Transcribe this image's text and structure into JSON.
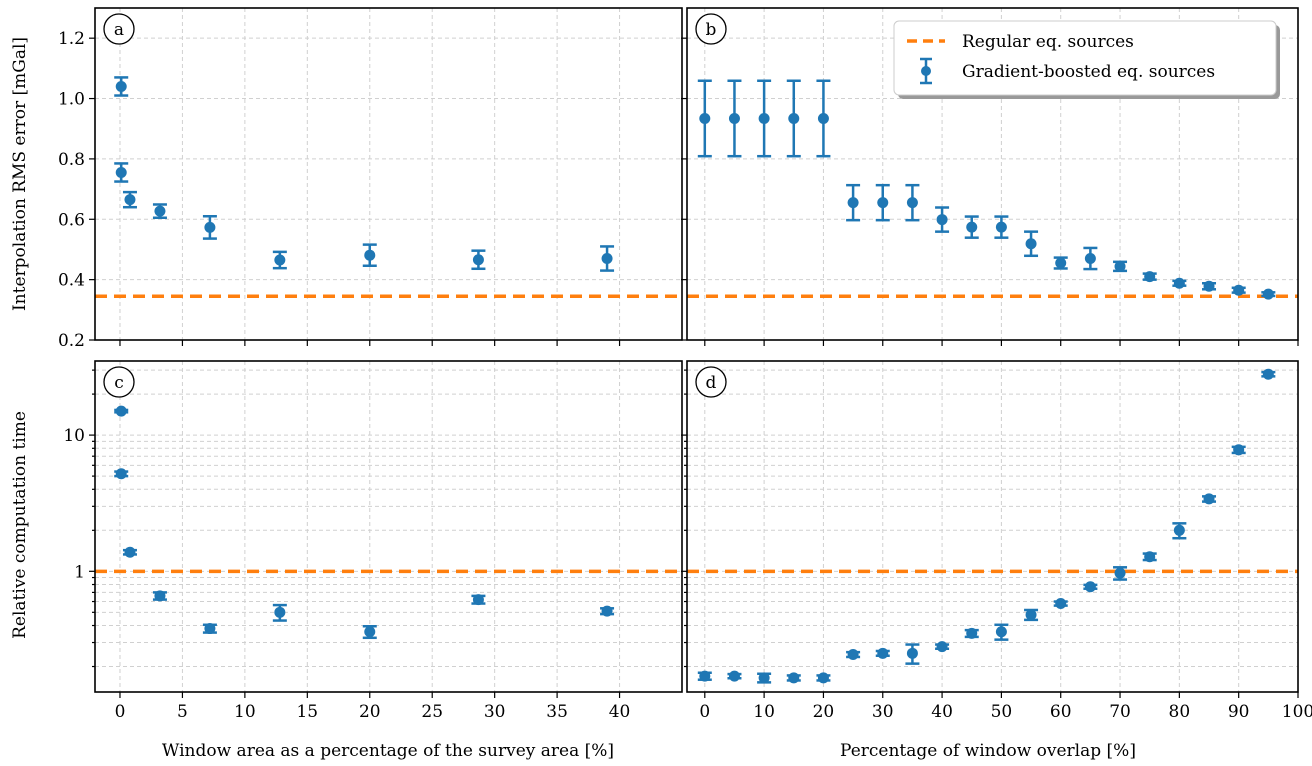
{
  "colors": {
    "points": "#1f77b4",
    "reference": "#ff7f0e",
    "grid": "#d0d0d0"
  },
  "chart_data": [
    {
      "id": "a",
      "panel_label": "a",
      "type": "scatter",
      "error_bars": true,
      "ylabel": "Interpolation RMS error [mGal]",
      "xlabel": "",
      "xlim": [
        -2,
        45
      ],
      "ylim": [
        0.2,
        1.3
      ],
      "yscale": "linear",
      "yticks": [
        0.2,
        0.4,
        0.6,
        0.8,
        1.0,
        1.2
      ],
      "ytick_labels": [
        "0.2",
        "0.4",
        "0.6",
        "0.8",
        "1.0",
        "1.2"
      ],
      "xticks": [
        0,
        5,
        10,
        15,
        20,
        25,
        30,
        35,
        40
      ],
      "show_xtick_labels": false,
      "grid": true,
      "reference_value": 0.345,
      "series": [
        {
          "x": [
            0.1,
            0.1,
            0.8,
            3.2,
            7.2,
            12.8,
            20,
            28.7,
            39
          ],
          "y": [
            1.04,
            0.755,
            0.665,
            0.627,
            0.573,
            0.465,
            0.481,
            0.466,
            0.47
          ],
          "err": [
            0.03,
            0.03,
            0.025,
            0.022,
            0.037,
            0.027,
            0.035,
            0.03,
            0.04
          ]
        }
      ]
    },
    {
      "id": "b",
      "panel_label": "b",
      "type": "scatter",
      "error_bars": true,
      "ylabel": "",
      "xlabel": "",
      "xlim": [
        -3,
        100
      ],
      "ylim": [
        0.2,
        1.3
      ],
      "yscale": "linear",
      "yticks": [
        0.2,
        0.4,
        0.6,
        0.8,
        1.0,
        1.2
      ],
      "show_ytick_labels": false,
      "xticks": [
        0,
        10,
        20,
        30,
        40,
        50,
        60,
        70,
        80,
        90,
        100
      ],
      "show_xtick_labels": false,
      "grid": true,
      "reference_value": 0.345,
      "legend": {
        "placement": "top-right",
        "entries": [
          "Regular eq. sources",
          "Gradient-boosted eq. sources"
        ]
      },
      "series": [
        {
          "x": [
            0,
            5,
            10,
            15,
            20,
            25,
            30,
            35,
            40,
            45,
            50,
            55,
            60,
            65,
            70,
            75,
            80,
            85,
            90,
            95
          ],
          "y": [
            0.934,
            0.934,
            0.934,
            0.934,
            0.934,
            0.655,
            0.655,
            0.655,
            0.599,
            0.574,
            0.574,
            0.519,
            0.455,
            0.47,
            0.444,
            0.41,
            0.388,
            0.378,
            0.365,
            0.352
          ],
          "err": [
            0.125,
            0.125,
            0.125,
            0.125,
            0.125,
            0.058,
            0.058,
            0.058,
            0.04,
            0.035,
            0.035,
            0.04,
            0.018,
            0.035,
            0.015,
            0.01,
            0.008,
            0.01,
            0.008,
            0.006
          ]
        }
      ]
    },
    {
      "id": "c",
      "panel_label": "c",
      "type": "scatter",
      "error_bars": true,
      "ylabel": "Relative computation time",
      "xlabel": "Window area as a percentage of the survey area [%]",
      "xlim": [
        -2,
        45
      ],
      "ylim": [
        0.13,
        35
      ],
      "yscale": "log",
      "yticks": [
        1,
        10
      ],
      "ytick_labels": [
        "1",
        "10"
      ],
      "xticks": [
        0,
        5,
        10,
        15,
        20,
        25,
        30,
        35,
        40
      ],
      "xtick_labels": [
        "0",
        "5",
        "10",
        "15",
        "20",
        "25",
        "30",
        "35",
        "40"
      ],
      "grid": true,
      "reference_value": 1,
      "series": [
        {
          "x": [
            0.1,
            0.1,
            0.8,
            3.2,
            7.2,
            12.8,
            20,
            28.7,
            39
          ],
          "y": [
            15,
            5.2,
            1.38,
            0.66,
            0.38,
            0.5,
            0.36,
            0.62,
            0.51
          ],
          "err_low": [
            0.3,
            0.2,
            0.05,
            0.04,
            0.025,
            0.065,
            0.035,
            0.04,
            0.025
          ],
          "err_high": [
            0.3,
            0.2,
            0.05,
            0.04,
            0.025,
            0.065,
            0.035,
            0.04,
            0.025
          ]
        }
      ]
    },
    {
      "id": "d",
      "panel_label": "d",
      "type": "scatter",
      "error_bars": true,
      "ylabel": "",
      "xlabel": "Percentage of window overlap [%]",
      "xlim": [
        -3,
        100
      ],
      "ylim": [
        0.13,
        35
      ],
      "yscale": "log",
      "yticks": [
        1,
        10
      ],
      "show_ytick_labels": false,
      "xticks": [
        0,
        10,
        20,
        30,
        40,
        50,
        60,
        70,
        80,
        90,
        100
      ],
      "xtick_labels": [
        "0",
        "10",
        "20",
        "30",
        "40",
        "50",
        "60",
        "70",
        "80",
        "90",
        "100"
      ],
      "grid": true,
      "reference_value": 1,
      "series": [
        {
          "x": [
            0,
            5,
            10,
            15,
            20,
            25,
            30,
            35,
            40,
            45,
            50,
            55,
            60,
            65,
            70,
            75,
            80,
            85,
            90,
            95
          ],
          "y": [
            0.17,
            0.17,
            0.165,
            0.165,
            0.165,
            0.245,
            0.25,
            0.25,
            0.28,
            0.35,
            0.36,
            0.48,
            0.58,
            0.77,
            0.97,
            1.28,
            2.0,
            3.4,
            7.8,
            28
          ],
          "err_low": [
            0.01,
            0.006,
            0.012,
            0.007,
            0.007,
            0.01,
            0.01,
            0.04,
            0.01,
            0.02,
            0.045,
            0.04,
            0.02,
            0.025,
            0.1,
            0.07,
            0.25,
            0.15,
            0.4,
            1.0
          ],
          "err_high": [
            0.01,
            0.006,
            0.012,
            0.007,
            0.007,
            0.01,
            0.01,
            0.04,
            0.01,
            0.02,
            0.045,
            0.04,
            0.02,
            0.025,
            0.1,
            0.07,
            0.25,
            0.15,
            0.4,
            1.0
          ]
        }
      ]
    }
  ]
}
